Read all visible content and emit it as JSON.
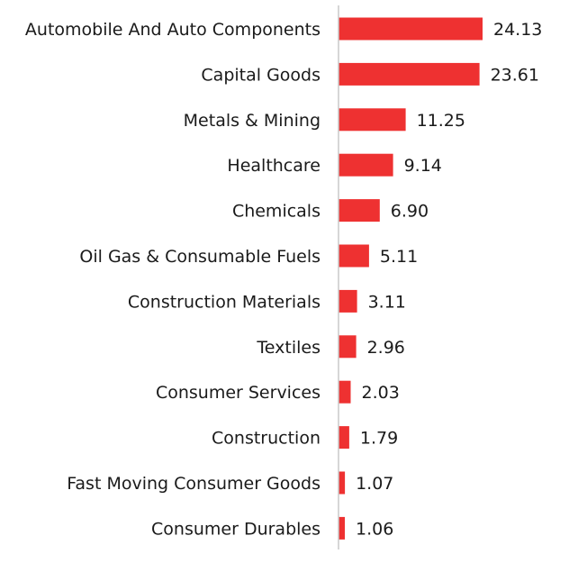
{
  "chart_data": {
    "type": "bar",
    "orientation": "horizontal",
    "categories": [
      "Automobile And Auto Components",
      "Capital Goods",
      "Metals & Mining",
      "Healthcare",
      "Chemicals",
      "Oil Gas & Consumable Fuels",
      "Construction Materials",
      "Textiles",
      "Consumer Services",
      "Construction",
      "Fast Moving Consumer Goods",
      "Consumer Durables"
    ],
    "values": [
      24.13,
      23.61,
      11.25,
      9.14,
      6.9,
      5.11,
      3.11,
      2.96,
      2.03,
      1.79,
      1.07,
      1.06
    ],
    "value_labels": [
      "24.13",
      "23.61",
      "11.25",
      "9.14",
      "6.90",
      "5.11",
      "3.11",
      "2.96",
      "2.03",
      "1.79",
      "1.07",
      "1.06"
    ],
    "xlim": [
      0,
      24.13
    ],
    "grid": false,
    "legend": "none",
    "bar_color": "#ee3131",
    "axis_color": "#c8c8c8",
    "text_color": "#1a1a1a"
  }
}
